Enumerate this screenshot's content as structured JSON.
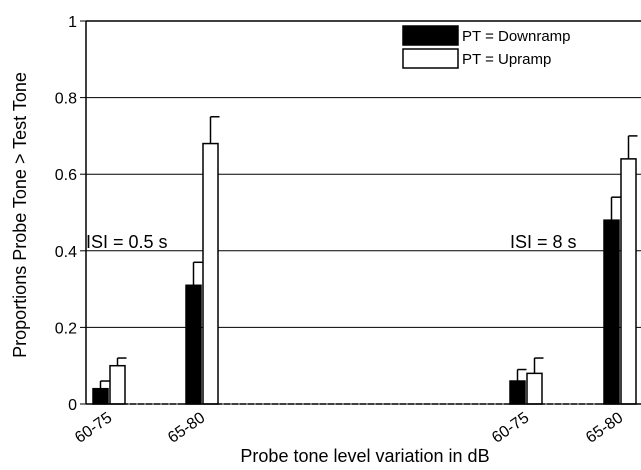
{
  "chart_data": {
    "type": "bar",
    "title": "",
    "xlabel": "Probe tone level variation in dB",
    "ylabel": "Proportions Probe Tone > Test Tone",
    "ylim": [
      0,
      1
    ],
    "yticks": [
      "0",
      "0.2",
      "0.4",
      "0.6",
      "0.8",
      "1"
    ],
    "categories": [
      "60-75",
      "65-80",
      "60-75",
      "65-80"
    ],
    "groups": [
      {
        "name": "ISI = 0.5 s",
        "categories": [
          "60-75",
          "65-80"
        ]
      },
      {
        "name": "ISI = 8 s",
        "categories": [
          "60-75",
          "65-80"
        ]
      }
    ],
    "series": [
      {
        "name": "PT = Downramp",
        "color": "#000000",
        "values": [
          0.04,
          0.31,
          0.06,
          0.48
        ],
        "error": [
          0.02,
          0.06,
          0.03,
          0.06
        ]
      },
      {
        "name": "PT = Upramp",
        "color": "#ffffff",
        "values": [
          0.1,
          0.68,
          0.08,
          0.64
        ],
        "error": [
          0.02,
          0.07,
          0.04,
          0.06
        ]
      }
    ],
    "annotations": [
      "ISI = 0.5 s",
      "ISI = 8 s"
    ],
    "grid": true,
    "legend_position": "top-right"
  }
}
